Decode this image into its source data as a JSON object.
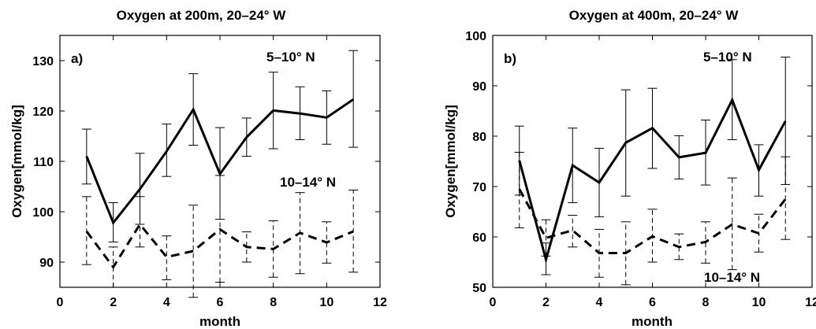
{
  "chart_data": [
    {
      "type": "line",
      "panel_label": "a)",
      "title": "Oxygen at 200m, 20–24° W",
      "xlabel": "month",
      "ylabel": "Oxygen[mmol/kg]",
      "xlim": [
        0,
        12
      ],
      "ylim": [
        85,
        135
      ],
      "xticks": [
        0,
        2,
        4,
        6,
        8,
        10,
        12
      ],
      "yticks": [
        90,
        100,
        110,
        120,
        130
      ],
      "grid": false,
      "series": [
        {
          "name": "5–10° N",
          "style": "solid",
          "color": "#000000",
          "x": [
            1,
            2,
            3,
            4,
            5,
            6,
            7,
            8,
            9,
            10,
            11
          ],
          "y": [
            111,
            97.8,
            104.5,
            112,
            120.3,
            107.5,
            114.8,
            120.1,
            119.5,
            118.7,
            122.3
          ],
          "err_low": [
            105.5,
            94,
            97.5,
            107,
            113.2,
            98.5,
            111,
            112.5,
            114.3,
            113.4,
            112.8
          ],
          "err_high": [
            116.4,
            101.8,
            111.6,
            117.4,
            127.4,
            116.7,
            118.6,
            127.7,
            124.8,
            124,
            132
          ]
        },
        {
          "name": "10–14° N",
          "style": "dashed",
          "color": "#000000",
          "x": [
            1,
            2,
            3,
            4,
            5,
            6,
            7,
            8,
            9,
            10,
            11
          ],
          "y": [
            96.1,
            89,
            97.5,
            91,
            92.2,
            96.5,
            93,
            92.6,
            95.8,
            93.9,
            96.1
          ],
          "err_low": [
            89.5,
            85,
            93,
            86.5,
            83,
            86,
            90,
            87,
            87.7,
            89.8,
            88
          ],
          "err_high": [
            103,
            93,
            103,
            95.2,
            101.3,
            107.2,
            96,
            98.2,
            103.8,
            98,
            104.3
          ]
        }
      ]
    },
    {
      "type": "line",
      "panel_label": "b)",
      "title": "Oxygen at 400m, 20–24° W",
      "xlabel": "month",
      "ylabel": "Oxygen[mmol/kg]",
      "xlim": [
        0,
        12
      ],
      "ylim": [
        50,
        100
      ],
      "xticks": [
        0,
        2,
        4,
        6,
        8,
        10,
        12
      ],
      "yticks": [
        50,
        60,
        70,
        80,
        90,
        100
      ],
      "grid": false,
      "series": [
        {
          "name": "5–10° N",
          "style": "solid",
          "color": "#000000",
          "x": [
            1,
            2,
            3,
            4,
            5,
            6,
            7,
            8,
            9,
            10,
            11
          ],
          "y": [
            75.2,
            55.5,
            74.2,
            70.8,
            78.7,
            81.6,
            75.8,
            76.7,
            87.2,
            73.3,
            83
          ],
          "err_low": [
            68.3,
            52.5,
            66.8,
            64,
            68.1,
            73.6,
            71.5,
            70.3,
            79.3,
            68.1,
            70.4
          ],
          "err_high": [
            82,
            58.8,
            81.6,
            77.6,
            89.2,
            89.5,
            80.1,
            83.2,
            95.2,
            78.3,
            95.7
          ]
        },
        {
          "name": "10–14° N",
          "style": "dashed",
          "color": "#000000",
          "x": [
            1,
            2,
            3,
            4,
            5,
            6,
            7,
            8,
            9,
            10,
            11
          ],
          "y": [
            69.5,
            59.8,
            61.3,
            56.8,
            56.8,
            60.1,
            58,
            59,
            62.5,
            60.7,
            67.5
          ],
          "err_low": [
            61.8,
            56.2,
            58,
            52,
            50.5,
            55,
            55.5,
            54.8,
            53.5,
            57,
            59.5
          ],
          "err_high": [
            76.8,
            63.4,
            64.3,
            61.5,
            63,
            65.5,
            60.6,
            63,
            71.7,
            64.5,
            75.9
          ]
        }
      ]
    }
  ]
}
